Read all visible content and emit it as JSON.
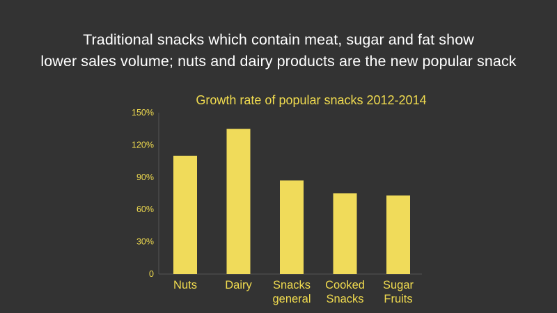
{
  "headline": {
    "line1": "Traditional snacks which contain meat, sugar and fat show",
    "line2": "lower sales volume; nuts and dairy products are the new popular snack"
  },
  "colors": {
    "background": "#333333",
    "headline_text": "#ffffff",
    "accent": "#f0db4f",
    "bar": "#f0db5a"
  },
  "chart_data": {
    "type": "bar",
    "title": "Growth rate of popular snacks 2012-2014",
    "categories": [
      [
        "Nuts"
      ],
      [
        "Dairy"
      ],
      [
        "Snacks",
        "general"
      ],
      [
        "Cooked",
        "Snacks"
      ],
      [
        "Sugar",
        "Fruits"
      ]
    ],
    "values": [
      110,
      135,
      87,
      75,
      73
    ],
    "unit": "%",
    "ylim": [
      0,
      150
    ],
    "yticks": [
      0,
      30,
      60,
      90,
      120,
      150
    ],
    "ytick_labels": [
      "0",
      "30%",
      "60%",
      "90%",
      "120%",
      "150%"
    ],
    "xlabel": "",
    "ylabel": "",
    "grid": false,
    "legend": "none"
  }
}
